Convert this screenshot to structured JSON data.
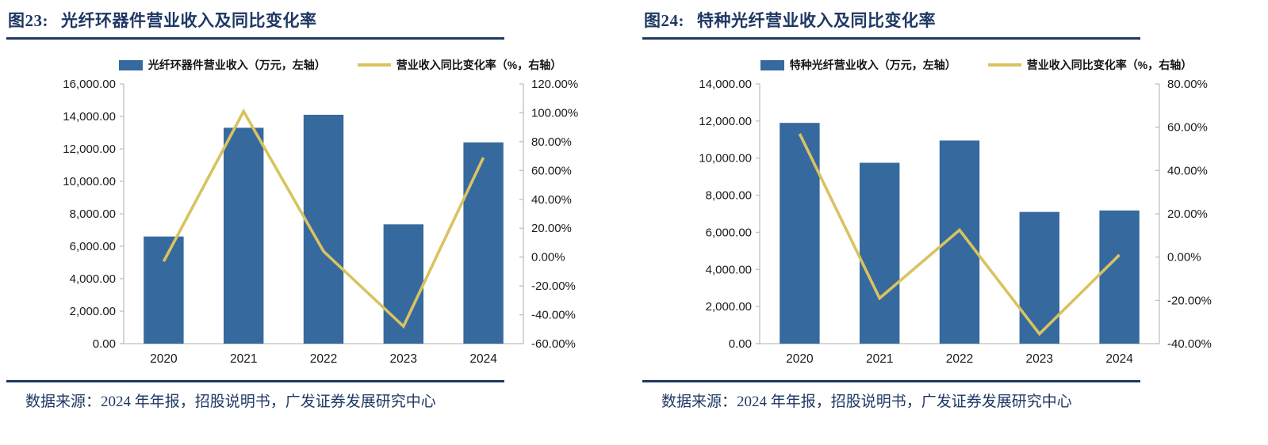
{
  "page": {
    "source_note": "数据来源：2024 年年报，招股说明书，广发证券发展研究中心"
  },
  "colors": {
    "navy": "#1f3864",
    "bar_fill": "#36699e",
    "line_stroke": "#d9c35f",
    "axis_line": "#bfbfbf",
    "tick_text": "#1a1a1a"
  },
  "chart_data": [
    {
      "type": "bar+line",
      "figure_label": "图23:",
      "title": "光纤环器件营业收入及同比变化率",
      "categories": [
        "2020",
        "2021",
        "2022",
        "2023",
        "2024"
      ],
      "series": [
        {
          "name": "光纤环器件营业收入（万元，左轴）",
          "type": "bar",
          "axis": "left",
          "values": [
            6600,
            13300,
            14100,
            7350,
            12400
          ]
        },
        {
          "name": "营业收入同比变化率（%，右轴）",
          "type": "line",
          "axis": "right",
          "values": [
            -3,
            101,
            4,
            -48,
            69
          ]
        }
      ],
      "left_axis": {
        "min": 0,
        "max": 16000,
        "step": 2000,
        "unit": "万元",
        "format": "thousands-2dp"
      },
      "right_axis": {
        "min": -60,
        "max": 120,
        "step": 20,
        "unit": "%",
        "format": "percent-2dp"
      },
      "legend_position": "top",
      "grid": false
    },
    {
      "type": "bar+line",
      "figure_label": "图24:",
      "title": "特种光纤营业收入及同比变化率",
      "categories": [
        "2020",
        "2021",
        "2022",
        "2023",
        "2024"
      ],
      "series": [
        {
          "name": "特种光纤营业收入（万元，左轴）",
          "type": "bar",
          "axis": "left",
          "values": [
            11900,
            9750,
            10950,
            7100,
            7180
          ]
        },
        {
          "name": "营业收入同比变化率（%，右轴）",
          "type": "line",
          "axis": "right",
          "values": [
            57,
            -19,
            12.5,
            -35.5,
            1
          ]
        }
      ],
      "left_axis": {
        "min": 0,
        "max": 14000,
        "step": 2000,
        "unit": "万元",
        "format": "thousands-2dp"
      },
      "right_axis": {
        "min": -40,
        "max": 80,
        "step": 20,
        "unit": "%",
        "format": "percent-2dp"
      },
      "legend_position": "top",
      "grid": false
    }
  ]
}
